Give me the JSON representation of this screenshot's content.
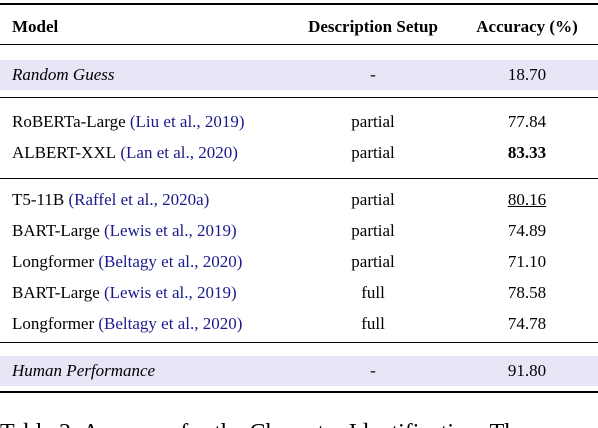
{
  "table": {
    "header": [
      "Model",
      "Description Setup",
      "Accuracy (%)"
    ],
    "rows": [
      {
        "model": "Random Guess",
        "setup": "-",
        "accuracy": "18.70"
      },
      {
        "model": "RoBERTa-Large",
        "citation": "(Liu et al., 2019)",
        "setup": "partial",
        "accuracy": "77.84"
      },
      {
        "model": "ALBERT-XXL",
        "citation": "(Lan et al., 2020)",
        "setup": "partial",
        "accuracy": "83.33"
      },
      {
        "model": "T5-11B",
        "citation": "(Raffel et al., 2020a)",
        "setup": "partial",
        "accuracy": "80.16"
      },
      {
        "model": "BART-Large",
        "citation": "(Lewis et al., 2019)",
        "setup": "partial",
        "accuracy": "74.89"
      },
      {
        "model": "Longformer",
        "citation": "(Beltagy et al., 2020)",
        "setup": "partial",
        "accuracy": "71.10"
      },
      {
        "model": "BART-Large",
        "citation": "(Lewis et al., 2019)",
        "setup": "full",
        "accuracy": "78.58"
      },
      {
        "model": "Longformer",
        "citation": "(Beltagy et al., 2020)",
        "setup": "full",
        "accuracy": "74.78"
      },
      {
        "model": "Human Performance",
        "setup": "-",
        "accuracy": "91.80"
      }
    ],
    "caption": "Table 3: Accuracy for the Character Identification. Th"
  }
}
